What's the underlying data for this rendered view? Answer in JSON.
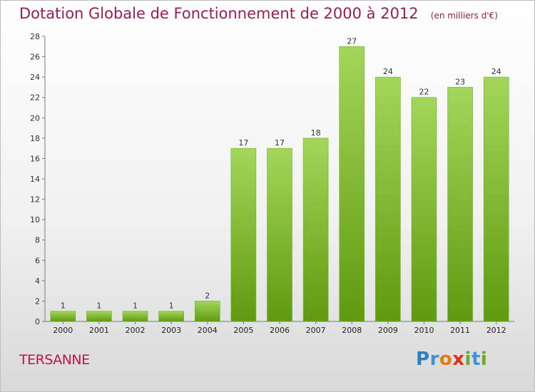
{
  "title": {
    "main": "Dotation Globale de Fonctionnement de 2000 à 2012",
    "sub": "(en milliers d'€)"
  },
  "commune": "TERSANNE",
  "logo_text": "Proxiti",
  "colors": {
    "title": "#9b1b54",
    "commune": "#b8184e",
    "bar_top": "#a3d65a",
    "bar_bottom": "#5f9a0f"
  },
  "chart_data": {
    "type": "bar",
    "categories": [
      "2000",
      "2001",
      "2002",
      "2003",
      "2004",
      "2005",
      "2006",
      "2007",
      "2008",
      "2009",
      "2010",
      "2011",
      "2012"
    ],
    "values": [
      1,
      1,
      1,
      1,
      2,
      17,
      17,
      18,
      27,
      24,
      22,
      23,
      24
    ],
    "ylim": [
      0,
      28
    ],
    "yticks": [
      0,
      2,
      4,
      6,
      8,
      10,
      12,
      14,
      16,
      18,
      20,
      22,
      24,
      26,
      28
    ],
    "grid": false,
    "legend": "none"
  }
}
